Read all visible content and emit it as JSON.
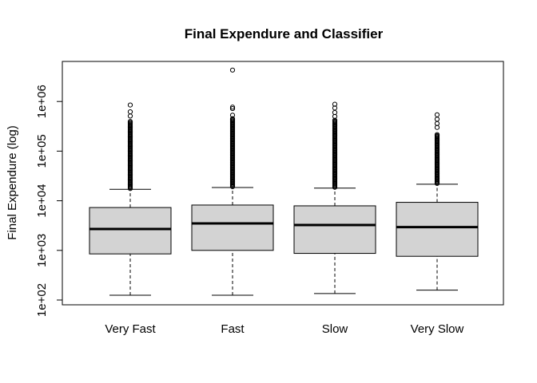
{
  "chart_data": {
    "type": "boxplot",
    "title": "Final Expendure and Classifier",
    "xlabel": "",
    "ylabel": "Final Expendure (log)",
    "y_scale": "log10",
    "ylim": [
      100,
      1300000
    ],
    "y_ticks": [
      {
        "value": 100,
        "label": "1e+02"
      },
      {
        "value": 1000,
        "label": "1e+03"
      },
      {
        "value": 10000,
        "label": "1e+04"
      },
      {
        "value": 100000,
        "label": "1e+05"
      },
      {
        "value": 1000000,
        "label": "1e+06"
      }
    ],
    "grid": false,
    "box_fill": "#d3d3d3",
    "categories": [
      "Very Fast",
      "Fast",
      "Slow",
      "Very Slow"
    ],
    "boxes": [
      {
        "category": "Very Fast",
        "whisker_low": 125,
        "q1": 850,
        "median": 2700,
        "q3": 7300,
        "whisker_high": 17000,
        "outlier_range": [
          17000,
          400000
        ],
        "outliers_sparse": [
          510000,
          620000,
          850000
        ]
      },
      {
        "category": "Fast",
        "whisker_low": 125,
        "q1": 1000,
        "median": 3500,
        "q3": 8200,
        "whisker_high": 18500,
        "outlier_range": [
          18500,
          450000
        ],
        "outliers_sparse": [
          530000,
          720000,
          770000,
          4300000
        ]
      },
      {
        "category": "Slow",
        "whisker_low": 135,
        "q1": 870,
        "median": 3250,
        "q3": 7900,
        "whisker_high": 18000,
        "outlier_range": [
          18000,
          420000
        ],
        "outliers_sparse": [
          500000,
          600000,
          740000,
          880000
        ]
      },
      {
        "category": "Very Slow",
        "whisker_low": 158,
        "q1": 760,
        "median": 2950,
        "q3": 9300,
        "whisker_high": 21500,
        "outlier_range": [
          21500,
          220000
        ],
        "outliers_sparse": [
          300000,
          360000,
          440000,
          540000
        ]
      }
    ]
  }
}
